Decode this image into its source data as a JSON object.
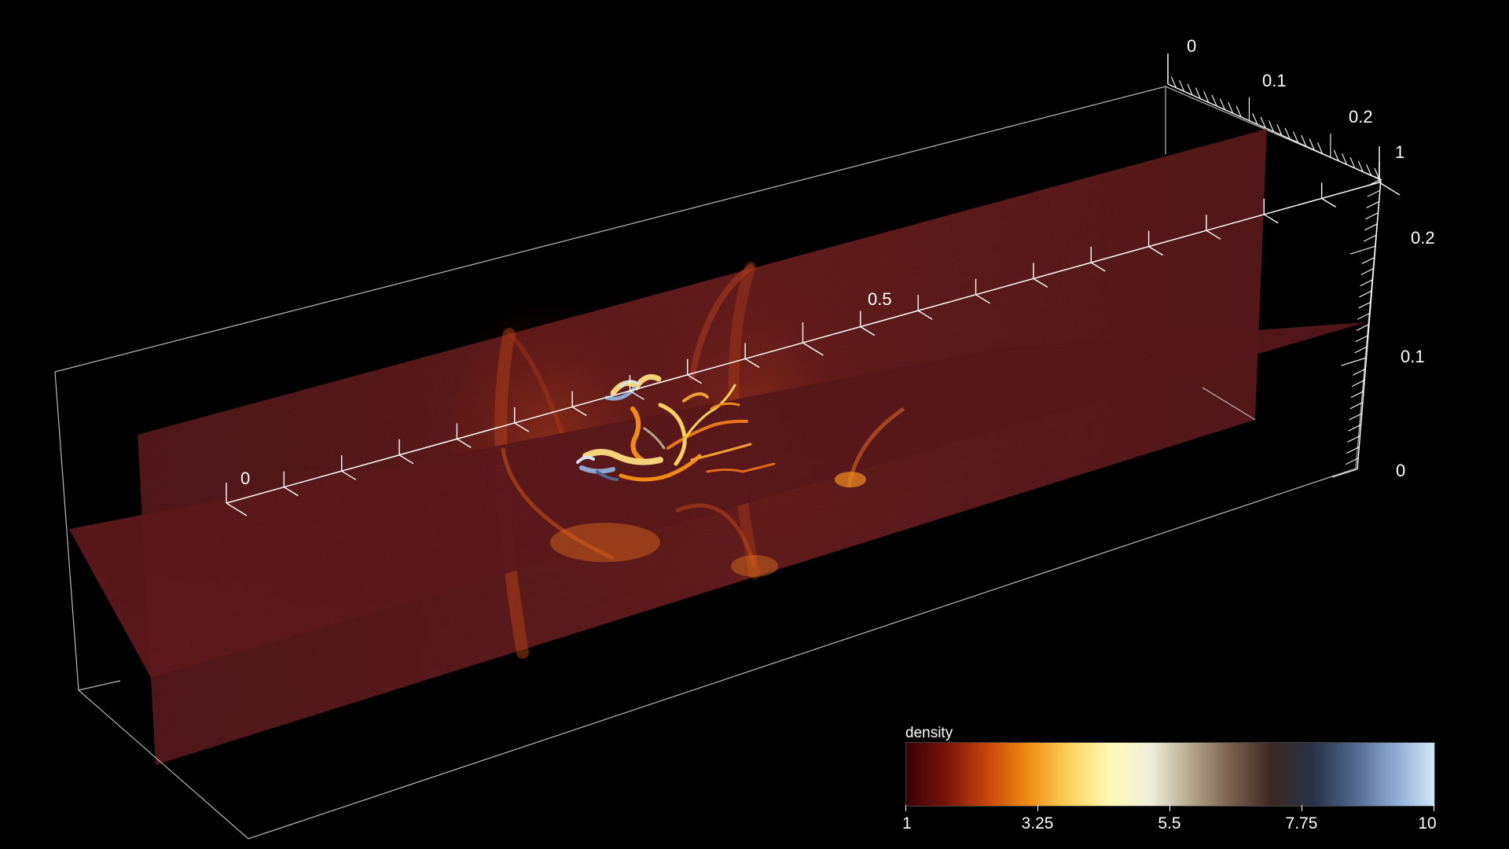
{
  "axes": {
    "x": {
      "ticks": [
        "0",
        "0.5",
        "1"
      ]
    },
    "y": {
      "ticks": [
        "0",
        "0.1",
        "0.2"
      ]
    },
    "z": {
      "ticks": [
        "0",
        "0.1",
        "0.2"
      ]
    }
  },
  "colorbar": {
    "title": "density",
    "ticks": [
      "1",
      "3.25",
      "5.5",
      "7.75",
      "10"
    ],
    "range": [
      1,
      10
    ],
    "colors": [
      "#3a0008",
      "#7a1408",
      "#c8460a",
      "#f08c14",
      "#fad25a",
      "#fffab4",
      "#f0eedc",
      "#b4a88c",
      "#786050",
      "#3c2824",
      "#283246",
      "#50648c",
      "#8ca8d2",
      "#d2e6f5"
    ]
  }
}
